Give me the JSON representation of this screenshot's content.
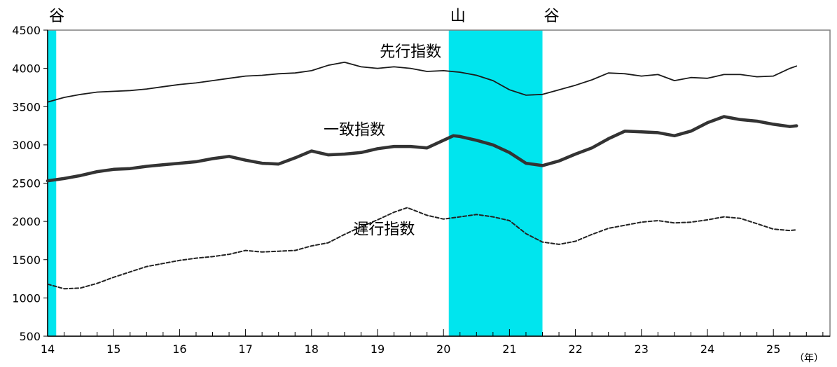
{
  "chart_data": {
    "type": "line",
    "x_unit_label": "（年）",
    "xlim": [
      14,
      25.5
    ],
    "ylim": [
      500,
      4500
    ],
    "x_ticks": [
      {
        "value": 14,
        "label": "14"
      },
      {
        "value": 15,
        "label": "15"
      },
      {
        "value": 16,
        "label": "16"
      },
      {
        "value": 17,
        "label": "17"
      },
      {
        "value": 18,
        "label": "18"
      },
      {
        "value": 19,
        "label": "19"
      },
      {
        "value": 20,
        "label": "20"
      },
      {
        "value": 21,
        "label": "21"
      },
      {
        "value": 22,
        "label": "22"
      },
      {
        "value": 23,
        "label": "23"
      },
      {
        "value": 24,
        "label": "24"
      },
      {
        "value": 25,
        "label": "25"
      }
    ],
    "y_ticks": [
      {
        "value": 500,
        "label": "500"
      },
      {
        "value": 1000,
        "label": "1000"
      },
      {
        "value": 1500,
        "label": "1500"
      },
      {
        "value": 2000,
        "label": "2000"
      },
      {
        "value": 2500,
        "label": "2500"
      },
      {
        "value": 3000,
        "label": "3000"
      },
      {
        "value": 3500,
        "label": "3500"
      },
      {
        "value": 4000,
        "label": "4000"
      },
      {
        "value": 4500,
        "label": "4500"
      }
    ],
    "shaded_periods": [
      {
        "start": 14.0,
        "end": 14.13,
        "color": "#00e5ee"
      },
      {
        "start": 20.08,
        "end": 21.5,
        "color": "#00e5ee"
      }
    ],
    "markers": [
      {
        "x": 14.0,
        "label": "谷"
      },
      {
        "x": 20.08,
        "label": "山"
      },
      {
        "x": 21.5,
        "label": "谷"
      }
    ],
    "series": [
      {
        "name": "先行指数",
        "style": "thin",
        "color": "#1a1a1a",
        "label_pos": [
          19.5,
          4150
        ],
        "points": [
          [
            14.0,
            3560
          ],
          [
            14.25,
            3620
          ],
          [
            14.5,
            3660
          ],
          [
            14.75,
            3690
          ],
          [
            15.0,
            3700
          ],
          [
            15.25,
            3710
          ],
          [
            15.5,
            3730
          ],
          [
            15.75,
            3760
          ],
          [
            16.0,
            3790
          ],
          [
            16.25,
            3810
          ],
          [
            16.5,
            3840
          ],
          [
            16.75,
            3870
          ],
          [
            17.0,
            3900
          ],
          [
            17.25,
            3910
          ],
          [
            17.5,
            3930
          ],
          [
            17.75,
            3940
          ],
          [
            18.0,
            3970
          ],
          [
            18.25,
            4040
          ],
          [
            18.5,
            4080
          ],
          [
            18.75,
            4020
          ],
          [
            19.0,
            4000
          ],
          [
            19.25,
            4020
          ],
          [
            19.5,
            4000
          ],
          [
            19.75,
            3960
          ],
          [
            20.0,
            3970
          ],
          [
            20.25,
            3950
          ],
          [
            20.5,
            3910
          ],
          [
            20.75,
            3840
          ],
          [
            21.0,
            3720
          ],
          [
            21.25,
            3650
          ],
          [
            21.5,
            3660
          ],
          [
            21.75,
            3720
          ],
          [
            22.0,
            3780
          ],
          [
            22.25,
            3850
          ],
          [
            22.5,
            3940
          ],
          [
            22.75,
            3930
          ],
          [
            23.0,
            3900
          ],
          [
            23.25,
            3920
          ],
          [
            23.5,
            3840
          ],
          [
            23.75,
            3880
          ],
          [
            24.0,
            3870
          ],
          [
            24.25,
            3920
          ],
          [
            24.5,
            3920
          ],
          [
            24.75,
            3890
          ],
          [
            25.0,
            3900
          ],
          [
            25.25,
            4000
          ],
          [
            25.35,
            4030
          ]
        ]
      },
      {
        "name": "一致指数",
        "style": "thick",
        "color": "#333333",
        "label_pos": [
          18.65,
          3130
        ],
        "points": [
          [
            14.0,
            2530
          ],
          [
            14.25,
            2560
          ],
          [
            14.5,
            2600
          ],
          [
            14.75,
            2650
          ],
          [
            15.0,
            2680
          ],
          [
            15.25,
            2690
          ],
          [
            15.5,
            2720
          ],
          [
            15.75,
            2740
          ],
          [
            16.0,
            2760
          ],
          [
            16.25,
            2780
          ],
          [
            16.5,
            2820
          ],
          [
            16.75,
            2850
          ],
          [
            17.0,
            2800
          ],
          [
            17.25,
            2760
          ],
          [
            17.5,
            2750
          ],
          [
            17.75,
            2830
          ],
          [
            18.0,
            2920
          ],
          [
            18.25,
            2870
          ],
          [
            18.5,
            2880
          ],
          [
            18.75,
            2900
          ],
          [
            19.0,
            2950
          ],
          [
            19.25,
            2980
          ],
          [
            19.5,
            2980
          ],
          [
            19.75,
            2960
          ],
          [
            20.0,
            3060
          ],
          [
            20.15,
            3120
          ],
          [
            20.25,
            3110
          ],
          [
            20.5,
            3060
          ],
          [
            20.75,
            3000
          ],
          [
            21.0,
            2900
          ],
          [
            21.25,
            2760
          ],
          [
            21.5,
            2730
          ],
          [
            21.75,
            2790
          ],
          [
            22.0,
            2880
          ],
          [
            22.25,
            2960
          ],
          [
            22.5,
            3080
          ],
          [
            22.75,
            3180
          ],
          [
            23.0,
            3170
          ],
          [
            23.25,
            3160
          ],
          [
            23.5,
            3120
          ],
          [
            23.75,
            3180
          ],
          [
            24.0,
            3290
          ],
          [
            24.25,
            3370
          ],
          [
            24.5,
            3330
          ],
          [
            24.75,
            3310
          ],
          [
            25.0,
            3270
          ],
          [
            25.25,
            3240
          ],
          [
            25.35,
            3250
          ]
        ]
      },
      {
        "name": "遅行指数",
        "style": "dashed",
        "color": "#222222",
        "label_pos": [
          19.1,
          1830
        ],
        "points": [
          [
            14.0,
            1180
          ],
          [
            14.25,
            1120
          ],
          [
            14.5,
            1130
          ],
          [
            14.75,
            1190
          ],
          [
            15.0,
            1270
          ],
          [
            15.25,
            1340
          ],
          [
            15.5,
            1410
          ],
          [
            15.75,
            1450
          ],
          [
            16.0,
            1490
          ],
          [
            16.25,
            1520
          ],
          [
            16.5,
            1540
          ],
          [
            16.75,
            1570
          ],
          [
            17.0,
            1620
          ],
          [
            17.25,
            1600
          ],
          [
            17.5,
            1610
          ],
          [
            17.75,
            1620
          ],
          [
            18.0,
            1680
          ],
          [
            18.25,
            1720
          ],
          [
            18.5,
            1830
          ],
          [
            18.75,
            1930
          ],
          [
            19.0,
            2020
          ],
          [
            19.25,
            2120
          ],
          [
            19.45,
            2180
          ],
          [
            19.75,
            2080
          ],
          [
            20.0,
            2030
          ],
          [
            20.25,
            2060
          ],
          [
            20.5,
            2090
          ],
          [
            20.75,
            2060
          ],
          [
            21.0,
            2010
          ],
          [
            21.25,
            1840
          ],
          [
            21.5,
            1730
          ],
          [
            21.75,
            1700
          ],
          [
            22.0,
            1740
          ],
          [
            22.25,
            1830
          ],
          [
            22.5,
            1910
          ],
          [
            22.75,
            1950
          ],
          [
            23.0,
            1990
          ],
          [
            23.25,
            2010
          ],
          [
            23.5,
            1980
          ],
          [
            23.75,
            1990
          ],
          [
            24.0,
            2020
          ],
          [
            24.25,
            2060
          ],
          [
            24.5,
            2040
          ],
          [
            24.75,
            1970
          ],
          [
            25.0,
            1900
          ],
          [
            25.25,
            1880
          ],
          [
            25.35,
            1890
          ]
        ]
      }
    ]
  }
}
